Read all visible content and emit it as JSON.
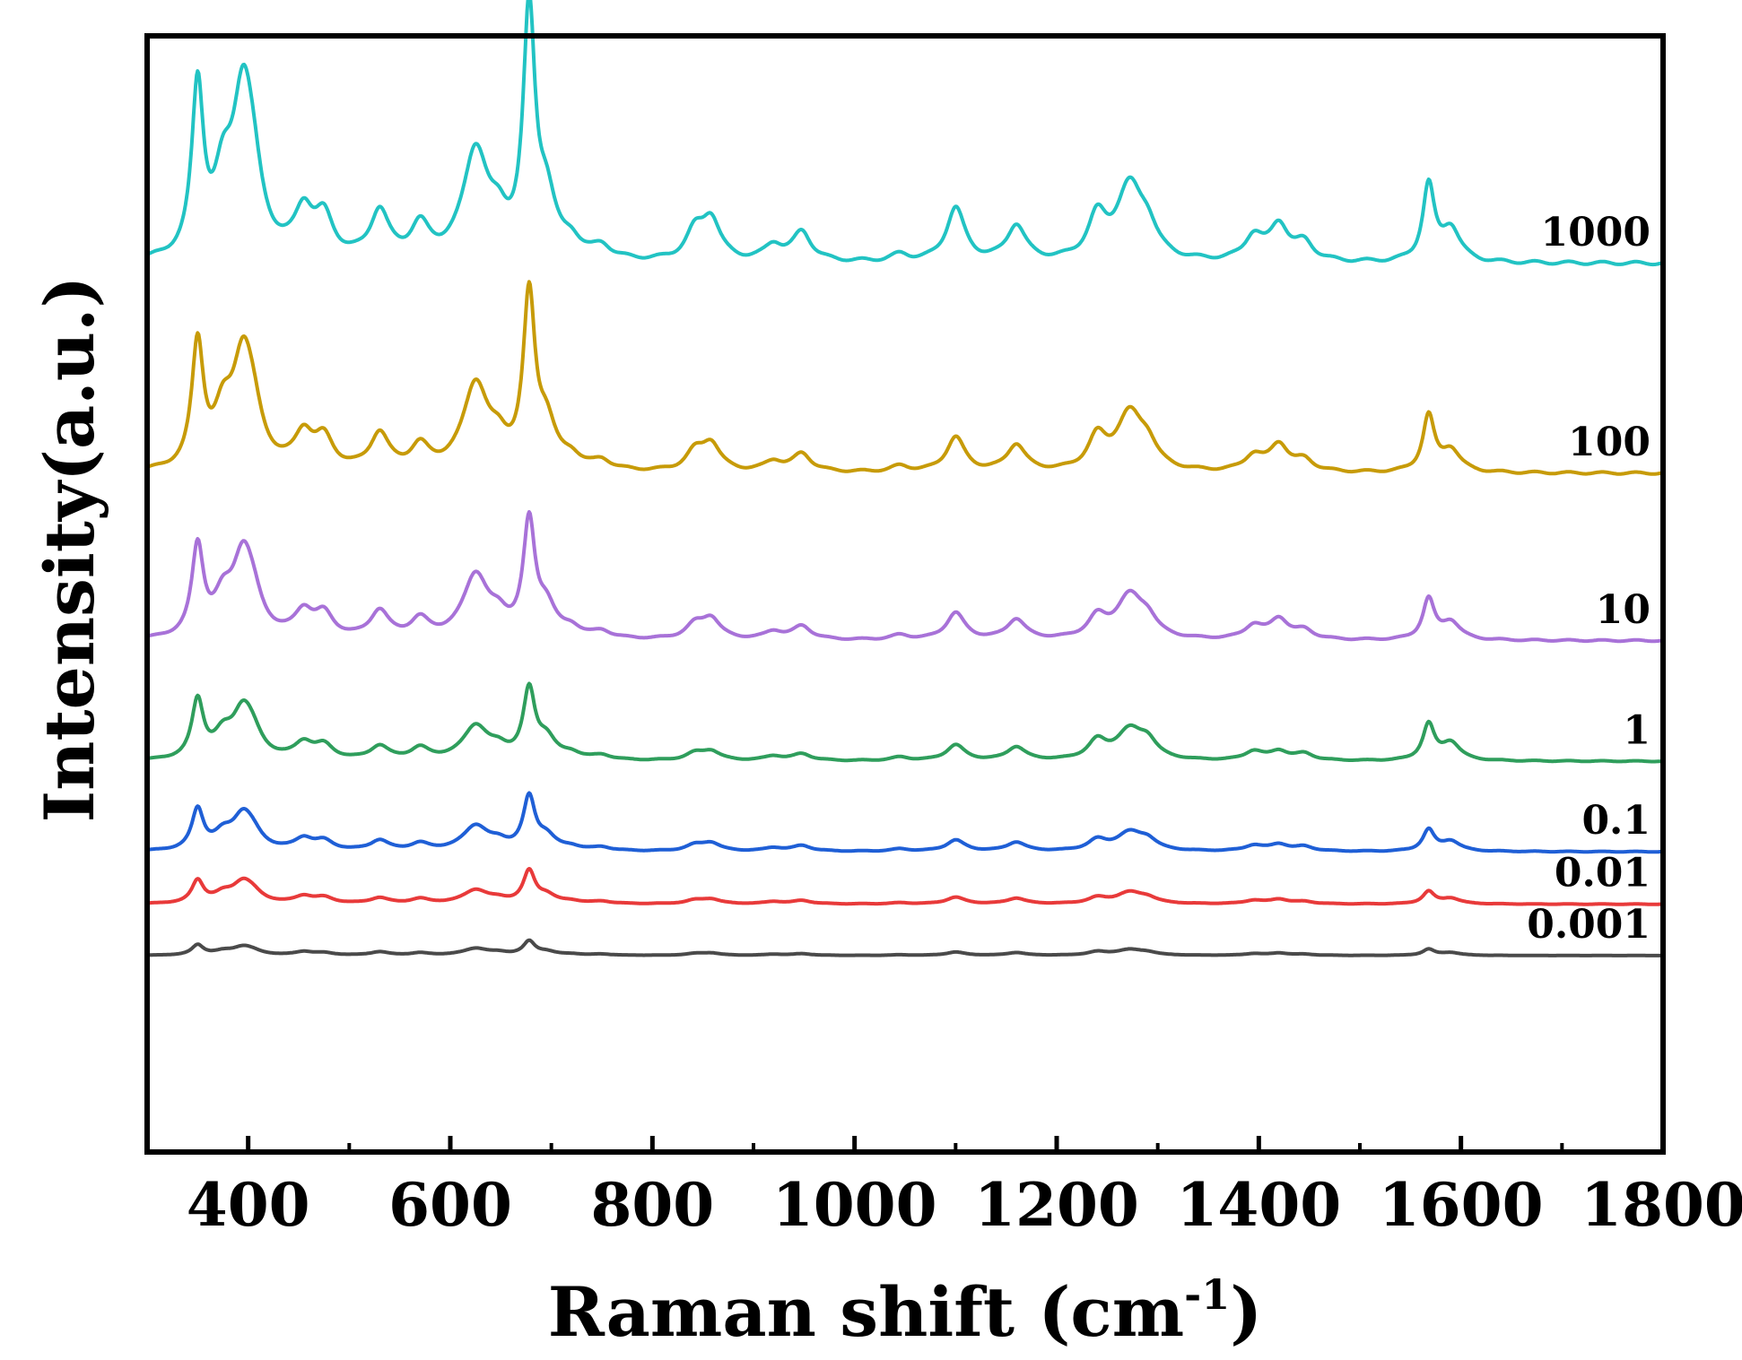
{
  "chart_data": {
    "type": "line",
    "title": "",
    "xlabel": "Raman shift (cm",
    "xlabel_sup": "-1",
    "xlabel_close": ")",
    "ylabel": "Intensity(a.u.)",
    "xlim": [
      300,
      1800
    ],
    "ylim": [
      0,
      100
    ],
    "xticks": [
      400,
      600,
      800,
      1000,
      1200,
      1400,
      1600,
      1800
    ],
    "xtick_labels": [
      "400",
      "600",
      "800",
      "1000",
      "1200",
      "1400",
      "1600",
      "1800"
    ],
    "x_minor_ticks": [
      300,
      500,
      700,
      900,
      1100,
      1300,
      1500,
      1700
    ],
    "y_ticks_shown": false,
    "grid": false,
    "peak_positions": [
      350,
      375,
      395,
      405,
      455,
      475,
      530,
      570,
      625,
      648,
      678,
      695,
      720,
      750,
      842,
      858,
      920,
      948,
      1045,
      1100,
      1160,
      1240,
      1272,
      1290,
      1395,
      1420,
      1445,
      1568,
      1590
    ],
    "series": [
      {
        "name": "1000",
        "color": "#22c3c3",
        "baseline": 79.6,
        "peak_heights": [
          15.0,
          5.5,
          14.0,
          3.6,
          4.0,
          3.4,
          4.2,
          2.8,
          9.6,
          2.4,
          21.5,
          5.0,
          1.4,
          1.1,
          2.4,
          3.6,
          1.4,
          2.6,
          0.6,
          4.8,
          3.2,
          3.6,
          6.5,
          2.2,
          2.2,
          3.2,
          1.6,
          6.8,
          3.0
        ]
      },
      {
        "name": "100",
        "color": "#c79b08",
        "baseline": 60.8,
        "peak_heights": [
          11.0,
          4.0,
          9.5,
          2.6,
          3.0,
          2.6,
          3.2,
          2.0,
          7.6,
          1.8,
          15.0,
          3.8,
          1.0,
          0.8,
          1.6,
          2.4,
          0.9,
          1.6,
          0.5,
          3.1,
          2.4,
          2.8,
          5.0,
          1.8,
          1.4,
          2.4,
          1.0,
          5.0,
          2.0
        ]
      },
      {
        "name": "10",
        "color": "#a872d8",
        "baseline": 45.8,
        "peak_heights": [
          8.0,
          2.8,
          7.0,
          1.8,
          2.2,
          2.0,
          2.4,
          1.6,
          5.6,
          1.4,
          10.0,
          2.6,
          0.8,
          0.6,
          1.2,
          1.8,
          0.7,
          1.2,
          0.4,
          2.4,
          1.8,
          1.8,
          3.8,
          1.4,
          1.2,
          1.8,
          0.8,
          3.6,
          1.6
        ]
      },
      {
        "name": "1",
        "color": "#2f9e5c",
        "baseline": 35.0,
        "peak_heights": [
          5.2,
          1.8,
          4.2,
          1.2,
          1.4,
          1.2,
          1.2,
          1.0,
          3.0,
          0.8,
          6.0,
          1.8,
          0.5,
          0.4,
          0.6,
          0.8,
          0.4,
          0.6,
          0.3,
          1.4,
          1.2,
          1.6,
          2.6,
          1.4,
          0.8,
          0.8,
          0.6,
          3.2,
          1.6
        ]
      },
      {
        "name": "0.1",
        "color": "#1f5fd6",
        "baseline": 26.9,
        "peak_heights": [
          3.6,
          1.2,
          3.0,
          0.8,
          1.0,
          0.8,
          0.9,
          0.6,
          2.2,
          0.6,
          4.6,
          1.2,
          0.3,
          0.3,
          0.5,
          0.7,
          0.3,
          0.5,
          0.2,
          1.0,
          0.8,
          0.9,
          1.6,
          0.8,
          0.5,
          0.6,
          0.4,
          1.9,
          0.9
        ]
      },
      {
        "name": "0.01",
        "color": "#e83a3a",
        "baseline": 22.2,
        "peak_heights": [
          2.0,
          0.7,
          1.8,
          0.5,
          0.6,
          0.5,
          0.5,
          0.4,
          1.2,
          0.3,
          2.8,
          0.7,
          0.2,
          0.2,
          0.3,
          0.4,
          0.2,
          0.3,
          0.1,
          0.6,
          0.5,
          0.5,
          1.0,
          0.4,
          0.3,
          0.4,
          0.2,
          1.1,
          0.5
        ]
      },
      {
        "name": "0.001",
        "color": "#4a4a4a",
        "baseline": 17.6,
        "peak_heights": [
          0.9,
          0.3,
          0.7,
          0.2,
          0.3,
          0.2,
          0.3,
          0.2,
          0.6,
          0.2,
          1.2,
          0.3,
          0.1,
          0.1,
          0.15,
          0.2,
          0.1,
          0.15,
          0.05,
          0.3,
          0.25,
          0.3,
          0.5,
          0.2,
          0.15,
          0.2,
          0.1,
          0.55,
          0.25
        ]
      }
    ]
  }
}
